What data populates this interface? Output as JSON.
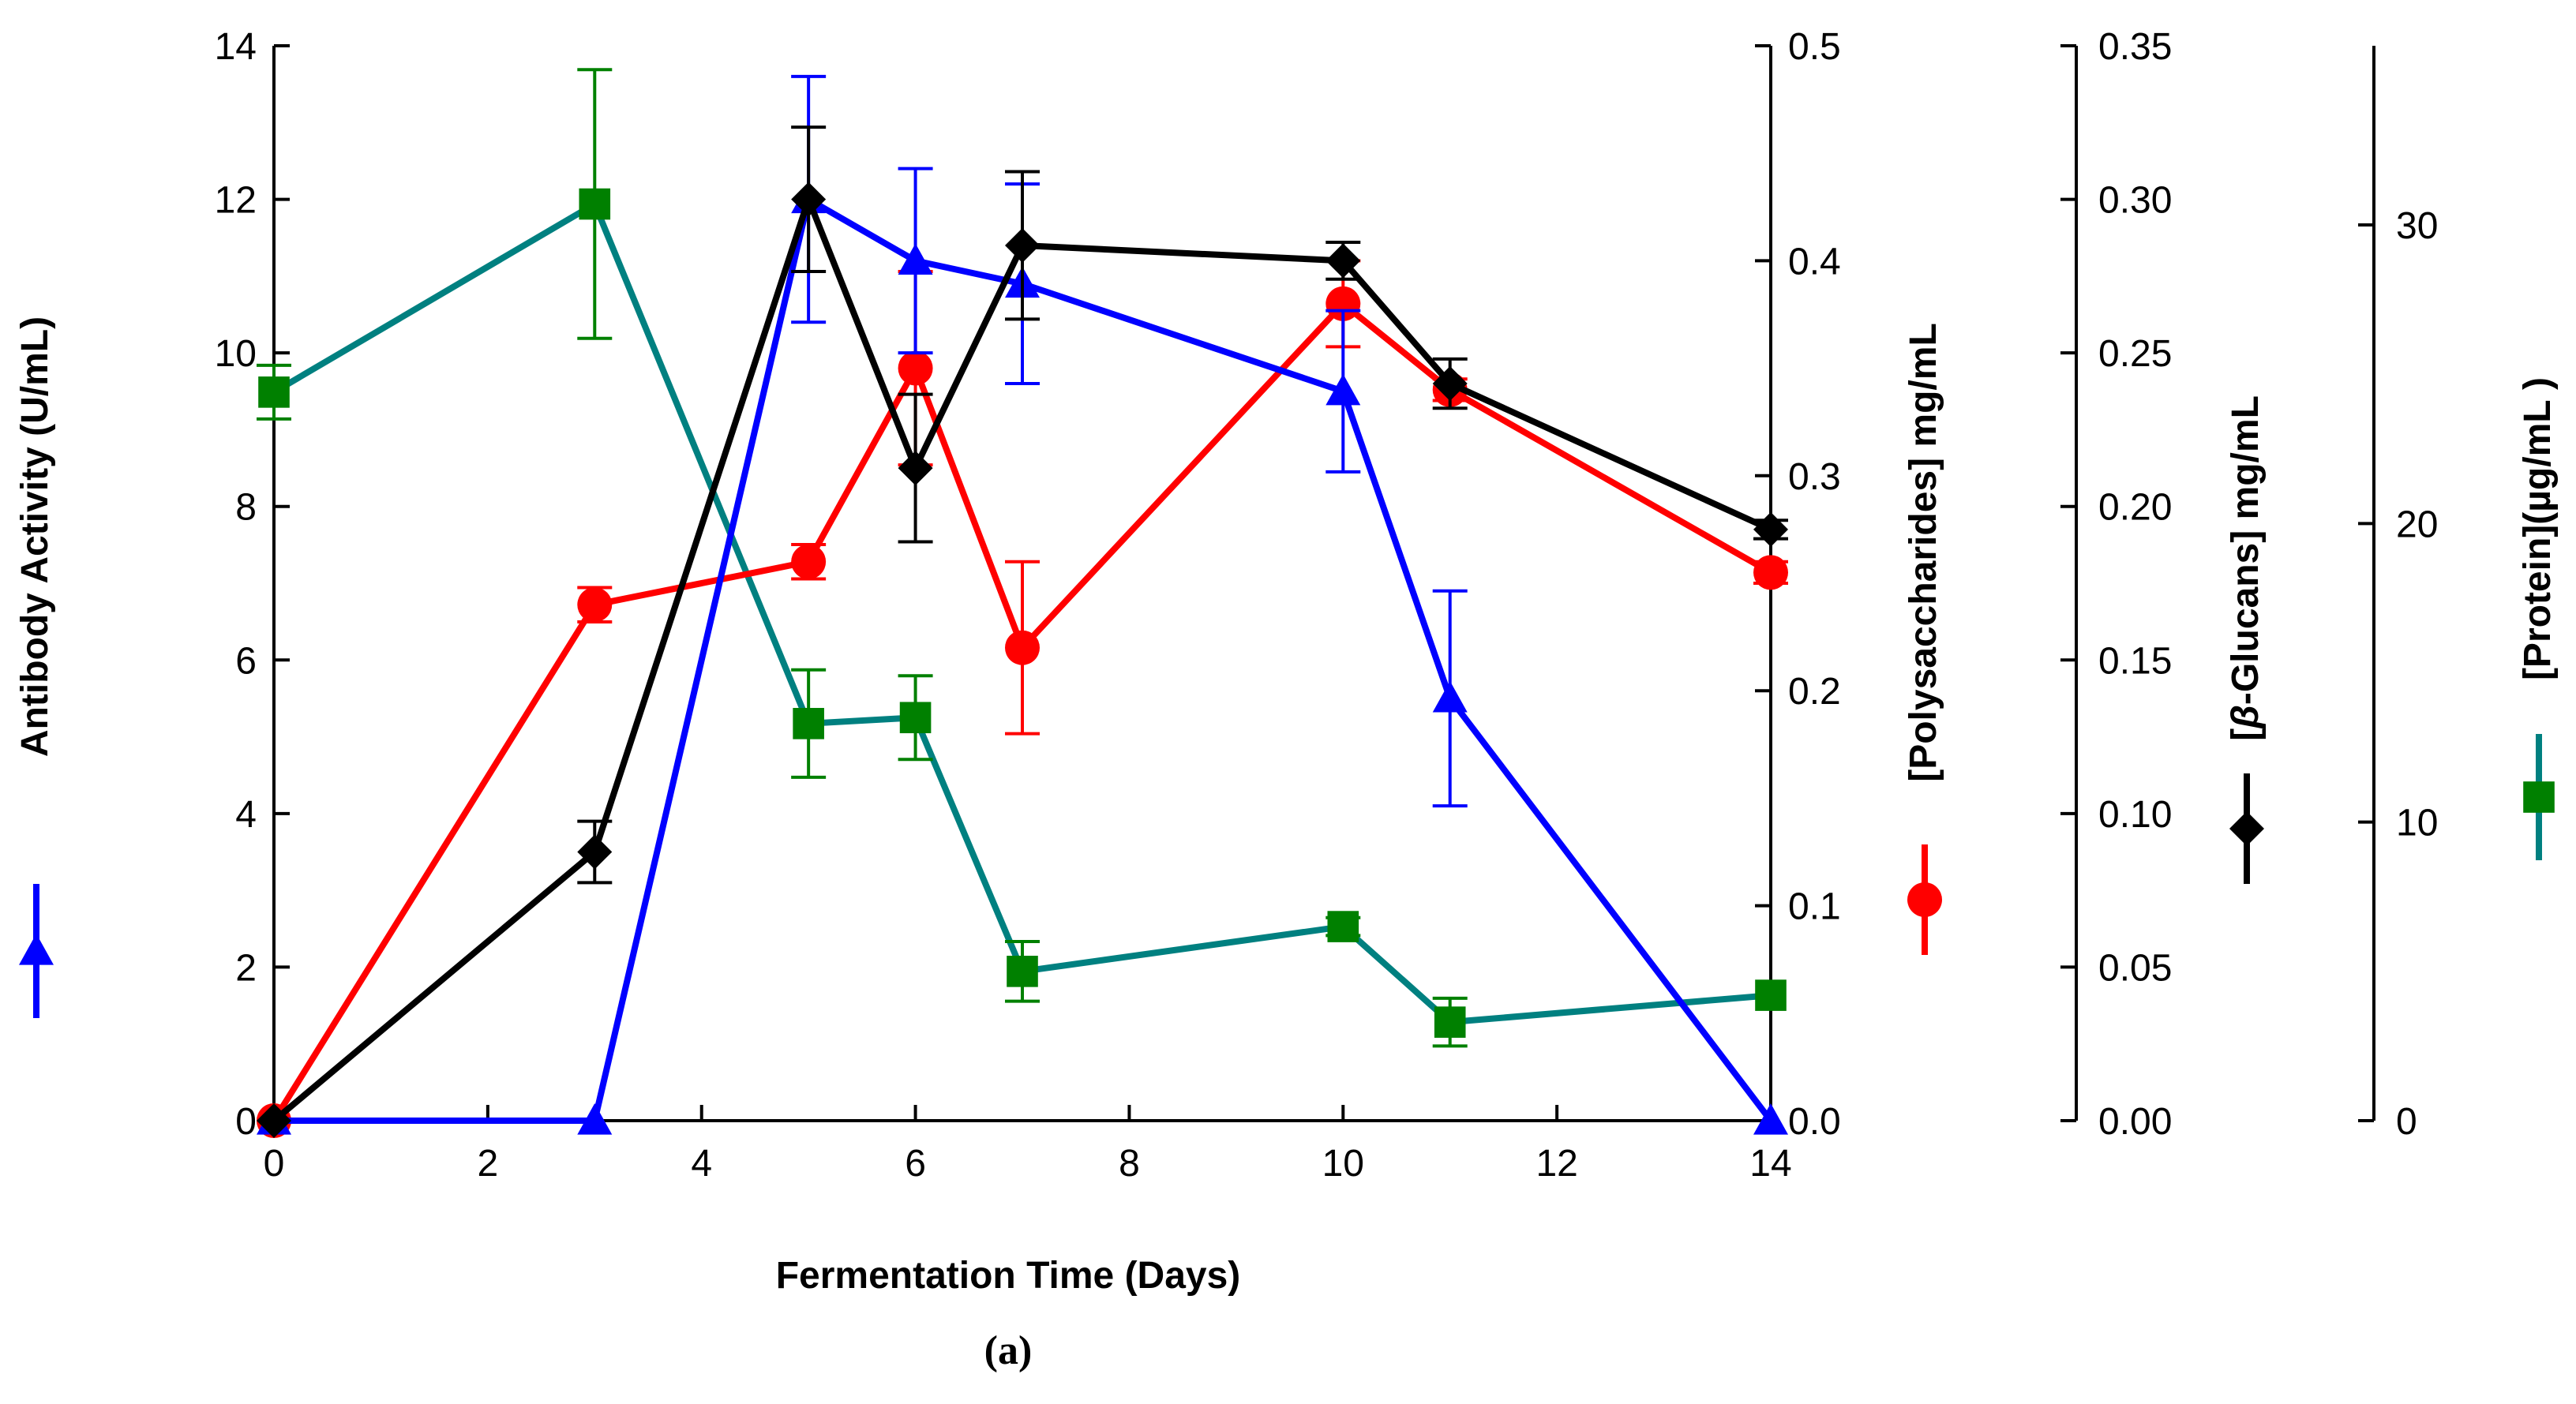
{
  "chart_data": {
    "type": "line",
    "title": "",
    "sublabel": "(a)",
    "xlabel": "Fermentation Time (Days)",
    "xlim": [
      0,
      14
    ],
    "xticks": [
      "0",
      "2",
      "4",
      "6",
      "8",
      "10",
      "12",
      "14"
    ],
    "axes": [
      {
        "id": "antibody",
        "label": "Antibody Activity (U/mL)",
        "ylim": [
          0,
          14
        ],
        "ticks": [
          "0",
          "2",
          "4",
          "6",
          "8",
          "10",
          "12",
          "14"
        ],
        "position": "left"
      },
      {
        "id": "poly",
        "label": "[Polysaccharides] mg/mL",
        "ylim": [
          0,
          0.5
        ],
        "ticks": [
          "0.0",
          "0.1",
          "0.2",
          "0.3",
          "0.4",
          "0.5"
        ],
        "position": "right"
      },
      {
        "id": "glucan",
        "label_prefix": "[",
        "label_italic": "β",
        "label_suffix": "-Glucans] mg/mL",
        "ylim": [
          0,
          0.35
        ],
        "ticks": [
          "0.00",
          "0.05",
          "0.10",
          "0.15",
          "0.20",
          "0.25",
          "0.30",
          "0.35"
        ],
        "position": "right-offset-1"
      },
      {
        "id": "protein",
        "label": "[Protein](µg/mL )",
        "ylim": [
          0,
          36
        ],
        "ticks": [
          "0",
          "10",
          "20",
          "30"
        ],
        "tick_values": [
          0,
          10,
          20,
          30
        ],
        "position": "right-offset-2"
      }
    ],
    "series": [
      {
        "name": "Antibody Activity",
        "axis": "antibody",
        "color": "#0000ff",
        "marker": "triangle",
        "x": [
          0,
          3,
          5,
          6,
          7,
          10,
          11,
          14
        ],
        "y": [
          0,
          0,
          12.0,
          11.2,
          10.9,
          9.5,
          5.5,
          0
        ],
        "err": [
          0,
          0,
          1.6,
          1.2,
          1.3,
          1.05,
          1.4,
          0
        ]
      },
      {
        "name": "Polysaccharides",
        "axis": "poly",
        "color": "#ff0000",
        "marker": "circle",
        "x": [
          0,
          3,
          5,
          6,
          7,
          10,
          11,
          14
        ],
        "y": [
          0.0,
          0.24,
          0.26,
          0.35,
          0.22,
          0.38,
          0.34,
          0.255
        ],
        "err": [
          0,
          0.008,
          0.008,
          0.045,
          0.04,
          0.02,
          0.005,
          0.005
        ]
      },
      {
        "name": "β-Glucans",
        "axis": "glucan",
        "color": "#000000",
        "marker": "diamond",
        "x": [
          0,
          3,
          5,
          6,
          7,
          10,
          11,
          14
        ],
        "y": [
          0.0,
          0.0875,
          0.3,
          0.2125,
          0.285,
          0.28,
          0.24,
          0.1925
        ],
        "err": [
          0,
          0.01,
          0.0235,
          0.024,
          0.024,
          0.006,
          0.008,
          0.003
        ]
      },
      {
        "name": "Protein",
        "axis": "protein",
        "color": "#008080",
        "marker": "square",
        "marker_color": "#008000",
        "err_color": "#008000",
        "x": [
          0,
          3,
          5,
          6,
          7,
          10,
          11,
          14
        ],
        "y": [
          24.4,
          30.7,
          13.3,
          13.5,
          5.0,
          6.5,
          3.3,
          4.2
        ],
        "err": [
          0.9,
          4.5,
          1.8,
          1.4,
          1.0,
          0.3,
          0.8,
          0
        ]
      }
    ],
    "legend": "rotated axis titles with line-and-marker keys beside each axis",
    "grid": false
  }
}
